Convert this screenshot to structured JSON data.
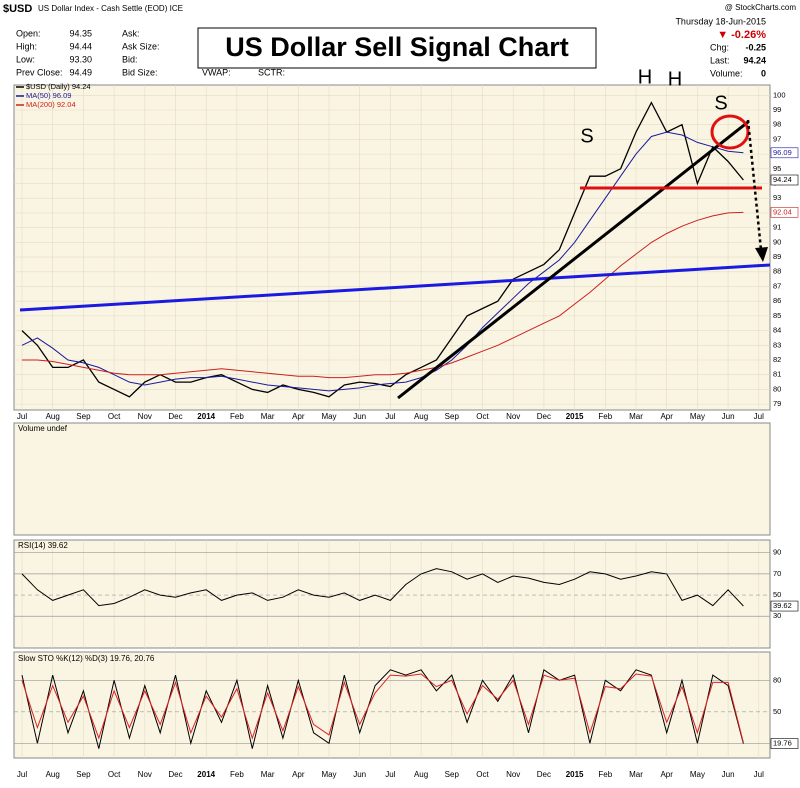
{
  "header": {
    "symbol": "$USD",
    "description": "US Dollar Index - Cash Settle (EOD) ICE",
    "source": "@ StockCharts.com",
    "date": "Thursday 18-Jun-2015",
    "stats_left": [
      {
        "label": "Open:",
        "value": "94.35"
      },
      {
        "label": "High:",
        "value": "94.44"
      },
      {
        "label": "Low:",
        "value": "93.30"
      },
      {
        "label": "Prev Close:",
        "value": "94.49"
      }
    ],
    "stats_mid": [
      "Ask:",
      "Ask Size:",
      "Bid:",
      "Bid Size:"
    ],
    "stats_extra": [
      "VWAP:",
      "SCTR:"
    ],
    "change_pct": "▼ -0.26%",
    "stats_right": [
      {
        "label": "Chg:",
        "value": "-0.25"
      },
      {
        "label": "Last:",
        "value": "94.24"
      },
      {
        "label": "Volume:",
        "value": "0"
      }
    ]
  },
  "volume_panel": {
    "title": "Volume undef"
  },
  "chart_data": [
    {
      "type": "line",
      "title": "US Dollar Sell Signal Chart",
      "annotations": [
        "S",
        "H",
        "H",
        "S"
      ],
      "categories": [
        "Jul",
        null,
        "Aug",
        null,
        "Sep",
        null,
        "Oct",
        null,
        "Nov",
        null,
        "Dec",
        null,
        "2014",
        null,
        "Feb",
        null,
        "Mar",
        null,
        "Apr",
        null,
        "May",
        null,
        "Jun",
        null,
        "Jul",
        null,
        "Aug",
        null,
        "Sep",
        null,
        "Oct",
        null,
        "Nov",
        null,
        "Dec",
        null,
        "2015",
        null,
        "Feb",
        null,
        "Mar",
        null,
        "Apr",
        null,
        "May",
        null,
        "Jun",
        null,
        "Jul"
      ],
      "series": [
        {
          "name": "$USD (Daily) 94.24",
          "color": "#000000",
          "end_label": "94.24",
          "values": [
            84,
            83,
            81.5,
            81.5,
            82,
            80.5,
            80,
            79.5,
            80.5,
            81,
            80.5,
            80.5,
            80.8,
            81,
            80.5,
            80,
            79.8,
            80.3,
            80,
            79.8,
            79.5,
            80.3,
            80.5,
            80.4,
            80.2,
            81,
            81.5,
            82,
            83.5,
            85,
            85.5,
            86,
            87.5,
            88,
            88.5,
            89.5,
            92,
            94.5,
            94.5,
            95,
            97.5,
            99.5,
            97.5,
            98,
            94,
            96.5,
            95.5,
            94.24,
            null
          ]
        },
        {
          "name": "MA(50) 96.09",
          "color": "#1a1aa0",
          "end_label": "96.09",
          "values": [
            83,
            83.5,
            82.8,
            82,
            81.8,
            81.5,
            81,
            80.5,
            80.3,
            80.5,
            80.7,
            80.8,
            80.8,
            80.9,
            80.7,
            80.5,
            80.3,
            80.2,
            80.1,
            80,
            79.9,
            80,
            80.1,
            80.3,
            80.4,
            80.5,
            80.8,
            81.3,
            82,
            83,
            84.2,
            85.2,
            86.2,
            87.2,
            88,
            88.8,
            90,
            91.5,
            93,
            94.5,
            96,
            97.2,
            97.5,
            97.3,
            96.8,
            96.5,
            96.2,
            96.09,
            null
          ]
        },
        {
          "name": "MA(200) 92.04",
          "color": "#cc2020",
          "end_label": "92.04",
          "values": [
            82,
            82,
            81.9,
            81.7,
            81.5,
            81.3,
            81.1,
            81,
            81,
            81,
            81.1,
            81.2,
            81.3,
            81.4,
            81.3,
            81.2,
            81.1,
            81,
            80.9,
            80.9,
            80.8,
            80.8,
            80.9,
            81,
            81,
            81.1,
            81.3,
            81.5,
            81.8,
            82.2,
            82.6,
            83,
            83.5,
            84,
            84.5,
            85,
            85.8,
            86.6,
            87.5,
            88.4,
            89.2,
            90,
            90.6,
            91.1,
            91.5,
            91.8,
            92,
            92.04,
            null
          ]
        }
      ],
      "ylim": [
        78.6,
        100.7
      ],
      "yticks": [
        79,
        80,
        81,
        82,
        83,
        84,
        85,
        86,
        87,
        88,
        89,
        90,
        91,
        92,
        93,
        94,
        95,
        96,
        97,
        98,
        99,
        100
      ],
      "grid": true
    },
    {
      "type": "line",
      "title": "RSI(14) 39.62",
      "series": [
        {
          "name": "RSI(14)",
          "color": "#000000",
          "end_label": "39.62",
          "values": [
            70,
            55,
            45,
            50,
            55,
            40,
            42,
            48,
            55,
            50,
            48,
            52,
            55,
            45,
            50,
            52,
            45,
            48,
            55,
            50,
            48,
            52,
            45,
            50,
            45,
            60,
            70,
            75,
            72,
            65,
            70,
            62,
            68,
            66,
            62,
            60,
            65,
            72,
            70,
            65,
            68,
            72,
            70,
            45,
            50,
            40,
            55,
            39.62,
            null
          ]
        }
      ],
      "ylim": [
        0,
        102
      ],
      "yticks": [
        30,
        50,
        70,
        90
      ],
      "grid": true
    },
    {
      "type": "line",
      "title": "Slow STO %K(12) %D(3) 19.76, 20.76",
      "series": [
        {
          "name": "%K(12)",
          "color": "#000000",
          "end_label": "19.76",
          "values": [
            85,
            20,
            85,
            30,
            70,
            15,
            80,
            25,
            75,
            30,
            85,
            20,
            70,
            40,
            80,
            15,
            75,
            25,
            80,
            30,
            20,
            85,
            30,
            75,
            90,
            85,
            90,
            70,
            85,
            40,
            80,
            60,
            85,
            30,
            90,
            80,
            85,
            20,
            80,
            70,
            90,
            85,
            30,
            80,
            20,
            85,
            75,
            19.76,
            null
          ]
        },
        {
          "name": "%D(3)",
          "color": "#dd2020",
          "values": [
            80,
            35,
            75,
            40,
            65,
            25,
            70,
            35,
            70,
            38,
            78,
            30,
            65,
            45,
            72,
            25,
            68,
            32,
            74,
            38,
            28,
            78,
            38,
            68,
            85,
            84,
            86,
            74,
            80,
            48,
            75,
            62,
            80,
            38,
            85,
            80,
            82,
            30,
            74,
            72,
            86,
            84,
            40,
            74,
            30,
            78,
            78,
            20.76,
            null
          ]
        }
      ],
      "ylim": [
        6,
        107
      ],
      "yticks": [
        20,
        50,
        80
      ],
      "grid": true
    }
  ]
}
